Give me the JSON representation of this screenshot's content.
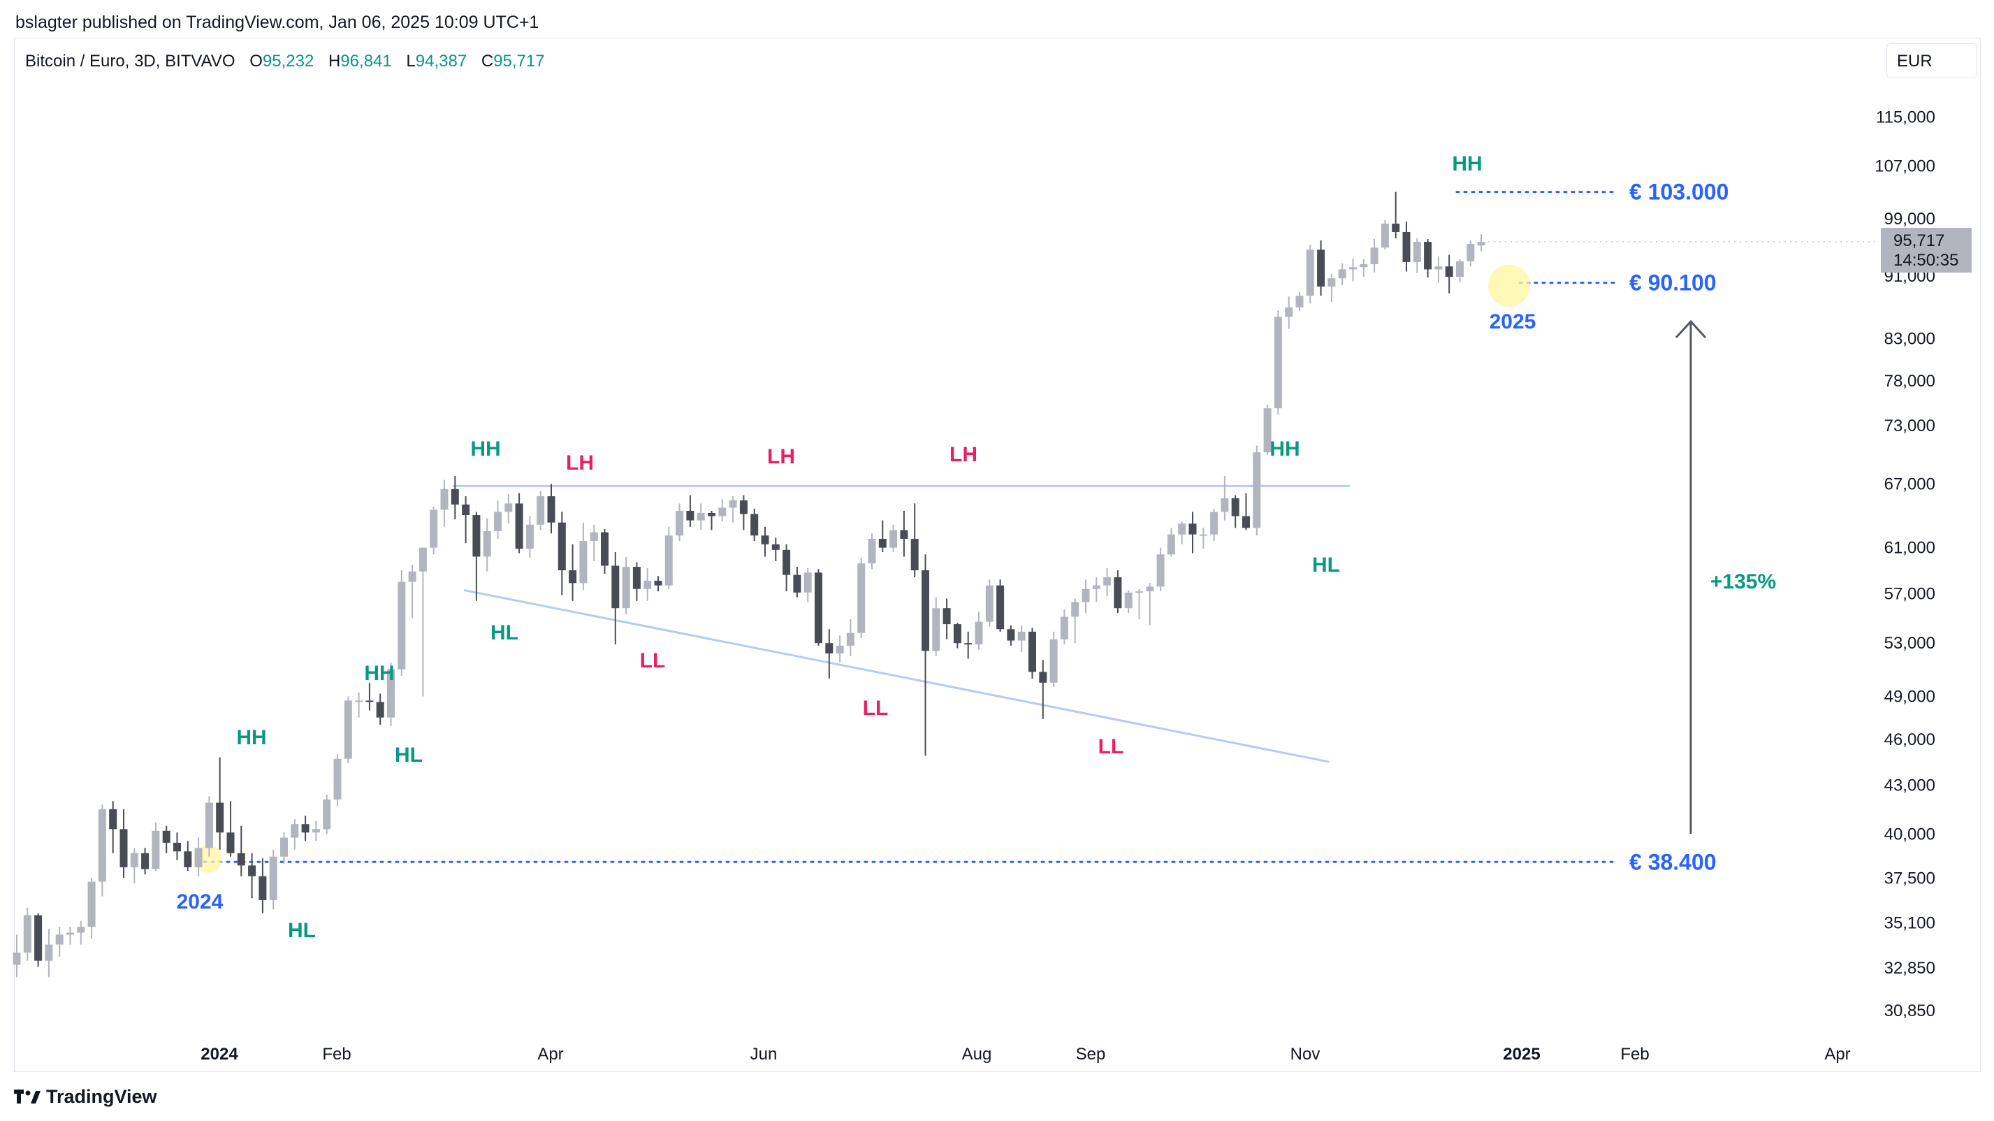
{
  "publisher": "bslagter published on TradingView.com, Jan 06, 2025 10:09 UTC+1",
  "legend": {
    "symbol": "Bitcoin / Euro, 3D, BITVAVO",
    "o_label": "O",
    "o": "95,232",
    "h_label": "H",
    "h": "96,841",
    "l_label": "L",
    "l": "94,387",
    "c_label": "C",
    "c": "95,717"
  },
  "currency": "EUR",
  "price_badge": {
    "price": "95,717",
    "timer": "14:50:35"
  },
  "footer": {
    "brand": "TradingView"
  },
  "colors": {
    "bull": "#b2b5be",
    "bear": "#4a4c55",
    "green": "#089981",
    "red": "#e91e63",
    "blue": "#2962ff",
    "line": "#b7c9f5"
  },
  "chart_data": {
    "type": "candlestick",
    "scale": "log",
    "y_ticks": [
      "115,000",
      "107,000",
      "99,000",
      "91,000",
      "83,000",
      "78,000",
      "73,000",
      "67,000",
      "61,000",
      "57,000",
      "53,000",
      "49,000",
      "46,000",
      "43,000",
      "40,000",
      "37,500",
      "35,100",
      "32,850",
      "30,850"
    ],
    "x_ticks": [
      "2024",
      "Feb",
      "Apr",
      "Jun",
      "Aug",
      "Sep",
      "Nov",
      "2025",
      "Feb",
      "Apr"
    ],
    "candles": [
      [
        33000,
        34500,
        32400,
        33600
      ],
      [
        33600,
        35900,
        33200,
        35500
      ],
      [
        35500,
        35600,
        32900,
        33200
      ],
      [
        33200,
        34800,
        32400,
        34000
      ],
      [
        34000,
        34900,
        33400,
        34500
      ],
      [
        34500,
        34900,
        34000,
        34600
      ],
      [
        34600,
        35200,
        34000,
        34900
      ],
      [
        34900,
        37500,
        34300,
        37300
      ],
      [
        37300,
        41800,
        36500,
        41500
      ],
      [
        41500,
        42000,
        38900,
        40300
      ],
      [
        40300,
        41500,
        37500,
        38100
      ],
      [
        38100,
        39200,
        37200,
        38900
      ],
      [
        38900,
        39200,
        37700,
        38000
      ],
      [
        38000,
        40700,
        37900,
        40200
      ],
      [
        40200,
        40500,
        38900,
        39500
      ],
      [
        39500,
        40100,
        38500,
        39000
      ],
      [
        39000,
        39600,
        37900,
        38100
      ],
      [
        38100,
        39800,
        37600,
        39200
      ],
      [
        39200,
        42300,
        38700,
        41900
      ],
      [
        41900,
        44800,
        39100,
        40100
      ],
      [
        40100,
        42000,
        38700,
        38900
      ],
      [
        38900,
        40500,
        37600,
        38200
      ],
      [
        38200,
        38900,
        36400,
        37600
      ],
      [
        37600,
        38600,
        35600,
        36300
      ],
      [
        36300,
        39100,
        35800,
        38700
      ],
      [
        38700,
        40100,
        38300,
        39800
      ],
      [
        39800,
        40900,
        39100,
        40600
      ],
      [
        40600,
        41100,
        39600,
        40100
      ],
      [
        40100,
        40800,
        39600,
        40300
      ],
      [
        40300,
        42400,
        40000,
        42100
      ],
      [
        42100,
        45000,
        41700,
        44700
      ],
      [
        44700,
        49000,
        44400,
        48700
      ],
      [
        48700,
        49300,
        47500,
        48700
      ],
      [
        48700,
        50000,
        48000,
        48600
      ],
      [
        48600,
        49200,
        47000,
        47500
      ],
      [
        47500,
        51500,
        46900,
        51000
      ],
      [
        51000,
        59000,
        50500,
        58000
      ],
      [
        58000,
        59500,
        55000,
        58900
      ],
      [
        58900,
        61000,
        49000,
        61000
      ],
      [
        61000,
        64800,
        60400,
        64500
      ],
      [
        64500,
        67400,
        62900,
        66500
      ],
      [
        66500,
        67800,
        63600,
        65000
      ],
      [
        65000,
        65800,
        61400,
        64000
      ],
      [
        64000,
        64300,
        56400,
        60200
      ],
      [
        60200,
        63700,
        58900,
        62500
      ],
      [
        62500,
        65400,
        61800,
        64300
      ],
      [
        64300,
        66000,
        63200,
        65100
      ],
      [
        65100,
        66100,
        60500,
        60900
      ],
      [
        60900,
        63900,
        60100,
        63100
      ],
      [
        63100,
        66300,
        62600,
        65800
      ],
      [
        65800,
        67000,
        62300,
        63300
      ],
      [
        63300,
        64300,
        56900,
        59000
      ],
      [
        59000,
        61300,
        56400,
        57900
      ],
      [
        57900,
        63300,
        57300,
        61600
      ],
      [
        61600,
        63100,
        59800,
        62400
      ],
      [
        62400,
        62700,
        58700,
        59400
      ],
      [
        59400,
        60600,
        52900,
        55800
      ],
      [
        55800,
        60200,
        55300,
        59300
      ],
      [
        59300,
        59700,
        56400,
        57400
      ],
      [
        57400,
        59200,
        56400,
        58100
      ],
      [
        58100,
        58500,
        57200,
        57700
      ],
      [
        57700,
        62900,
        57400,
        62100
      ],
      [
        62100,
        65100,
        61600,
        64400
      ],
      [
        64400,
        65900,
        62900,
        63500
      ],
      [
        63500,
        65100,
        62600,
        64200
      ],
      [
        64200,
        64400,
        62600,
        63900
      ],
      [
        63900,
        65500,
        63400,
        64700
      ],
      [
        64700,
        65800,
        63300,
        65400
      ],
      [
        65400,
        65900,
        62600,
        64100
      ],
      [
        64100,
        64600,
        61600,
        62100
      ],
      [
        62100,
        62900,
        60200,
        61300
      ],
      [
        61300,
        61900,
        59800,
        60800
      ],
      [
        60800,
        61300,
        57200,
        58600
      ],
      [
        58600,
        59300,
        56700,
        57100
      ],
      [
        57100,
        59200,
        56300,
        58800
      ],
      [
        58800,
        59100,
        52800,
        53000
      ],
      [
        53000,
        54100,
        50300,
        52200
      ],
      [
        52200,
        53600,
        51500,
        52800
      ],
      [
        52800,
        54900,
        52000,
        53800
      ],
      [
        53800,
        60100,
        53400,
        59600
      ],
      [
        59600,
        62300,
        59100,
        61800
      ],
      [
        61800,
        63500,
        60600,
        61000
      ],
      [
        61000,
        63100,
        60600,
        62600
      ],
      [
        62600,
        64400,
        60200,
        61800
      ],
      [
        61800,
        65100,
        58400,
        59000
      ],
      [
        59000,
        60400,
        44900,
        52400
      ],
      [
        52400,
        56700,
        52000,
        55800
      ],
      [
        55800,
        56600,
        53300,
        54500
      ],
      [
        54500,
        54600,
        52600,
        53000
      ],
      [
        53000,
        53900,
        51800,
        52900
      ],
      [
        52900,
        55500,
        52500,
        54700
      ],
      [
        54700,
        58200,
        54300,
        57700
      ],
      [
        57700,
        58200,
        53900,
        54100
      ],
      [
        54100,
        54400,
        52800,
        53200
      ],
      [
        53200,
        54400,
        52300,
        53900
      ],
      [
        53900,
        54200,
        50300,
        50800
      ],
      [
        50800,
        51700,
        47400,
        50000
      ],
      [
        50000,
        53900,
        49700,
        53300
      ],
      [
        53300,
        55700,
        52900,
        55100
      ],
      [
        55100,
        56600,
        53000,
        56300
      ],
      [
        56300,
        58200,
        55400,
        57400
      ],
      [
        57400,
        58400,
        56300,
        57700
      ],
      [
        57700,
        59200,
        56800,
        58400
      ],
      [
        58400,
        59000,
        55400,
        55800
      ],
      [
        55800,
        57300,
        55400,
        57100
      ],
      [
        57100,
        57400,
        54900,
        57200
      ],
      [
        57200,
        57900,
        54400,
        57600
      ],
      [
        57600,
        61000,
        57200,
        60400
      ],
      [
        60400,
        62800,
        60200,
        62200
      ],
      [
        62200,
        63400,
        61300,
        63200
      ],
      [
        63200,
        64300,
        60500,
        62200
      ],
      [
        62200,
        62800,
        60900,
        62200
      ],
      [
        62200,
        64600,
        61600,
        64300
      ],
      [
        64300,
        67800,
        63500,
        65600
      ],
      [
        65600,
        65900,
        62800,
        63900
      ],
      [
        63900,
        66100,
        62600,
        62800
      ],
      [
        62800,
        70900,
        62100,
        70200
      ],
      [
        70200,
        75300,
        69900,
        74900
      ],
      [
        74900,
        86500,
        74200,
        85700
      ],
      [
        85700,
        88300,
        84200,
        86900
      ],
      [
        86900,
        88900,
        86400,
        88400
      ],
      [
        88400,
        95300,
        87400,
        94600
      ],
      [
        94600,
        95900,
        88400,
        89600
      ],
      [
        89600,
        91300,
        87600,
        90700
      ],
      [
        90700,
        92700,
        89800,
        91900
      ],
      [
        91900,
        93400,
        90300,
        92200
      ],
      [
        92200,
        93300,
        90900,
        92600
      ],
      [
        92600,
        96100,
        91500,
        94900
      ],
      [
        94900,
        98800,
        94600,
        98300
      ],
      [
        98300,
        103000,
        96200,
        97100
      ],
      [
        97100,
        98600,
        91600,
        92900
      ],
      [
        92900,
        96200,
        91400,
        95700
      ],
      [
        95700,
        96100,
        90800,
        91900
      ],
      [
        91900,
        93700,
        90100,
        92300
      ],
      [
        92300,
        93900,
        88700,
        90900
      ],
      [
        90900,
        93300,
        90200,
        93000
      ],
      [
        93000,
        95900,
        92300,
        95400
      ],
      [
        95200,
        96800,
        94400,
        95700
      ]
    ],
    "annotations": {
      "green": [
        "HH",
        "HL",
        "HH",
        "HL",
        "HH",
        "HL",
        "HH",
        "HH",
        "HL"
      ],
      "red": [
        "LH",
        "LH",
        "LH",
        "LL",
        "LL",
        "LL"
      ],
      "years": [
        "2024",
        "2025"
      ]
    },
    "levels": {
      "high": "€ 103.000",
      "high_value": 103000,
      "mid": "€ 90.100",
      "mid_value": 90100,
      "low": "€ 38.400",
      "low_value": 38400,
      "gain": "+135%"
    },
    "trendlines": {
      "resistance": [
        [
          66800,
          66800
        ]
      ],
      "support_from": 57300,
      "support_to": 44500
    }
  }
}
